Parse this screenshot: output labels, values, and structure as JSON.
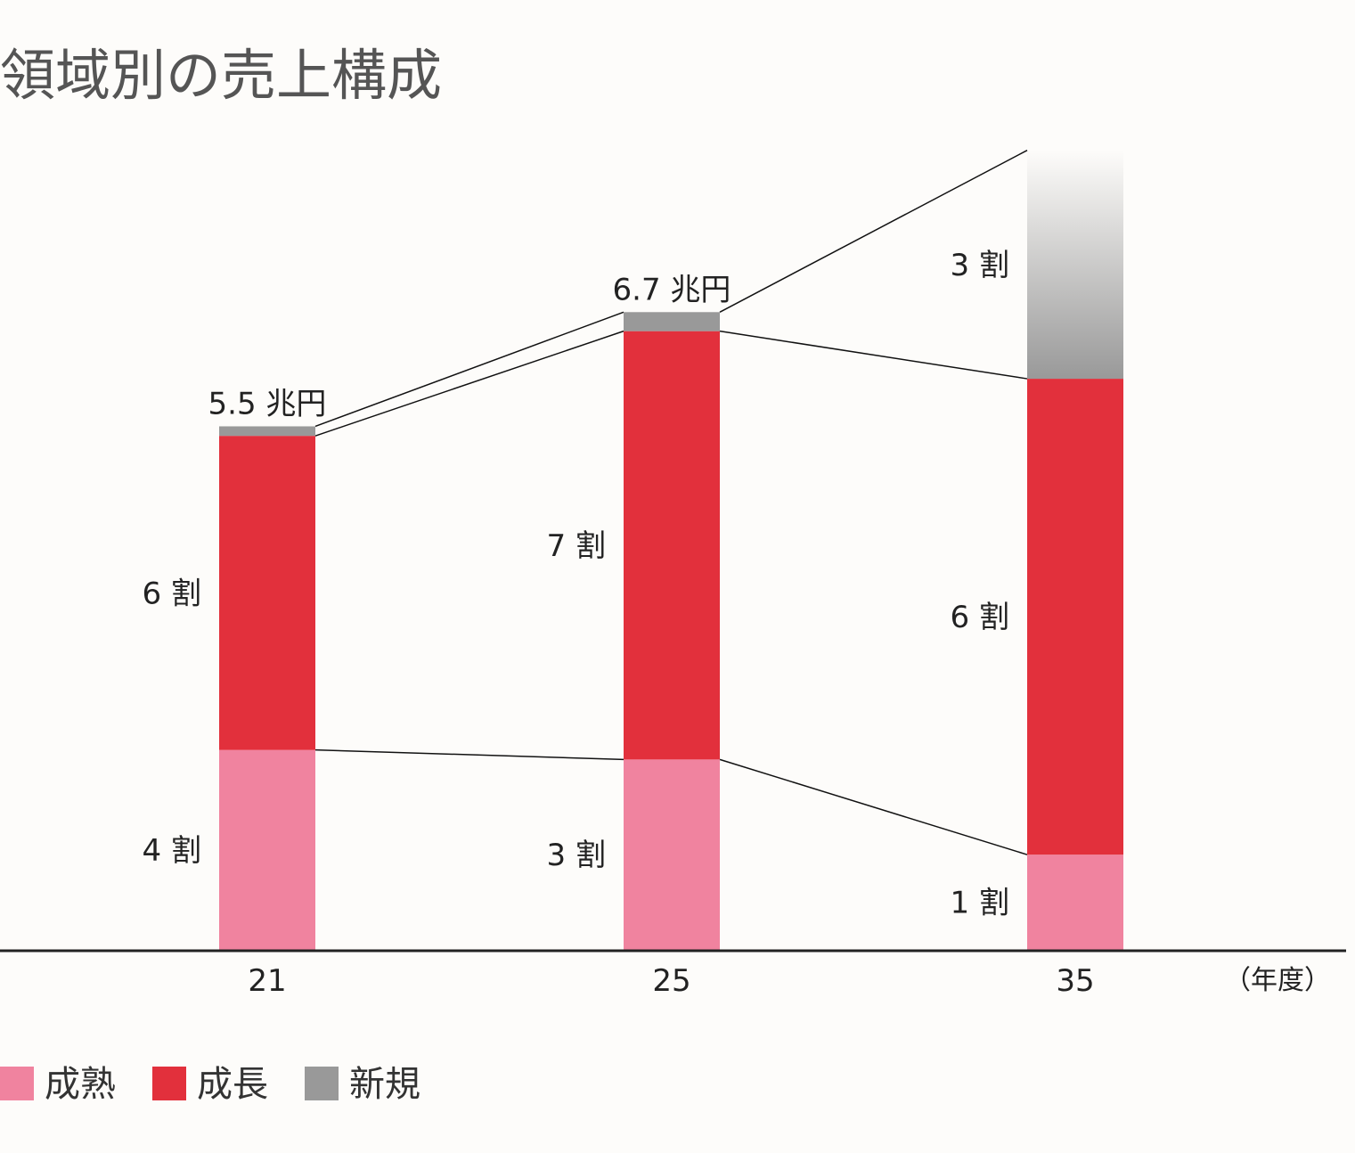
{
  "chart_data": {
    "type": "bar",
    "stacked": true,
    "title": "領域別の売上構成",
    "x_unit_label": "（年度）",
    "categories": [
      "21",
      "25",
      "35"
    ],
    "totals": [
      5.5,
      6.7,
      null
    ],
    "total_labels": [
      "5.5 兆円",
      "6.7 兆円",
      ""
    ],
    "series": [
      {
        "name": "成熟",
        "color": "#f0839f",
        "values": [
          2.1,
          2.0,
          1.0
        ],
        "labels": [
          "4 割",
          "3 割",
          "1 割"
        ]
      },
      {
        "name": "成長",
        "color": "#e2303c",
        "values": [
          3.3,
          4.5,
          5.0
        ],
        "labels": [
          "6 割",
          "7 割",
          "6 割"
        ]
      },
      {
        "name": "新規",
        "color": "#999999",
        "values": [
          0.1,
          0.2,
          2.4
        ],
        "labels": [
          "",
          "",
          "3 割"
        ],
        "gradient_last": true
      }
    ],
    "connector_lines": true,
    "ylim": [
      0,
      8.5
    ],
    "grid": false,
    "legend_position": "bottom-left"
  }
}
